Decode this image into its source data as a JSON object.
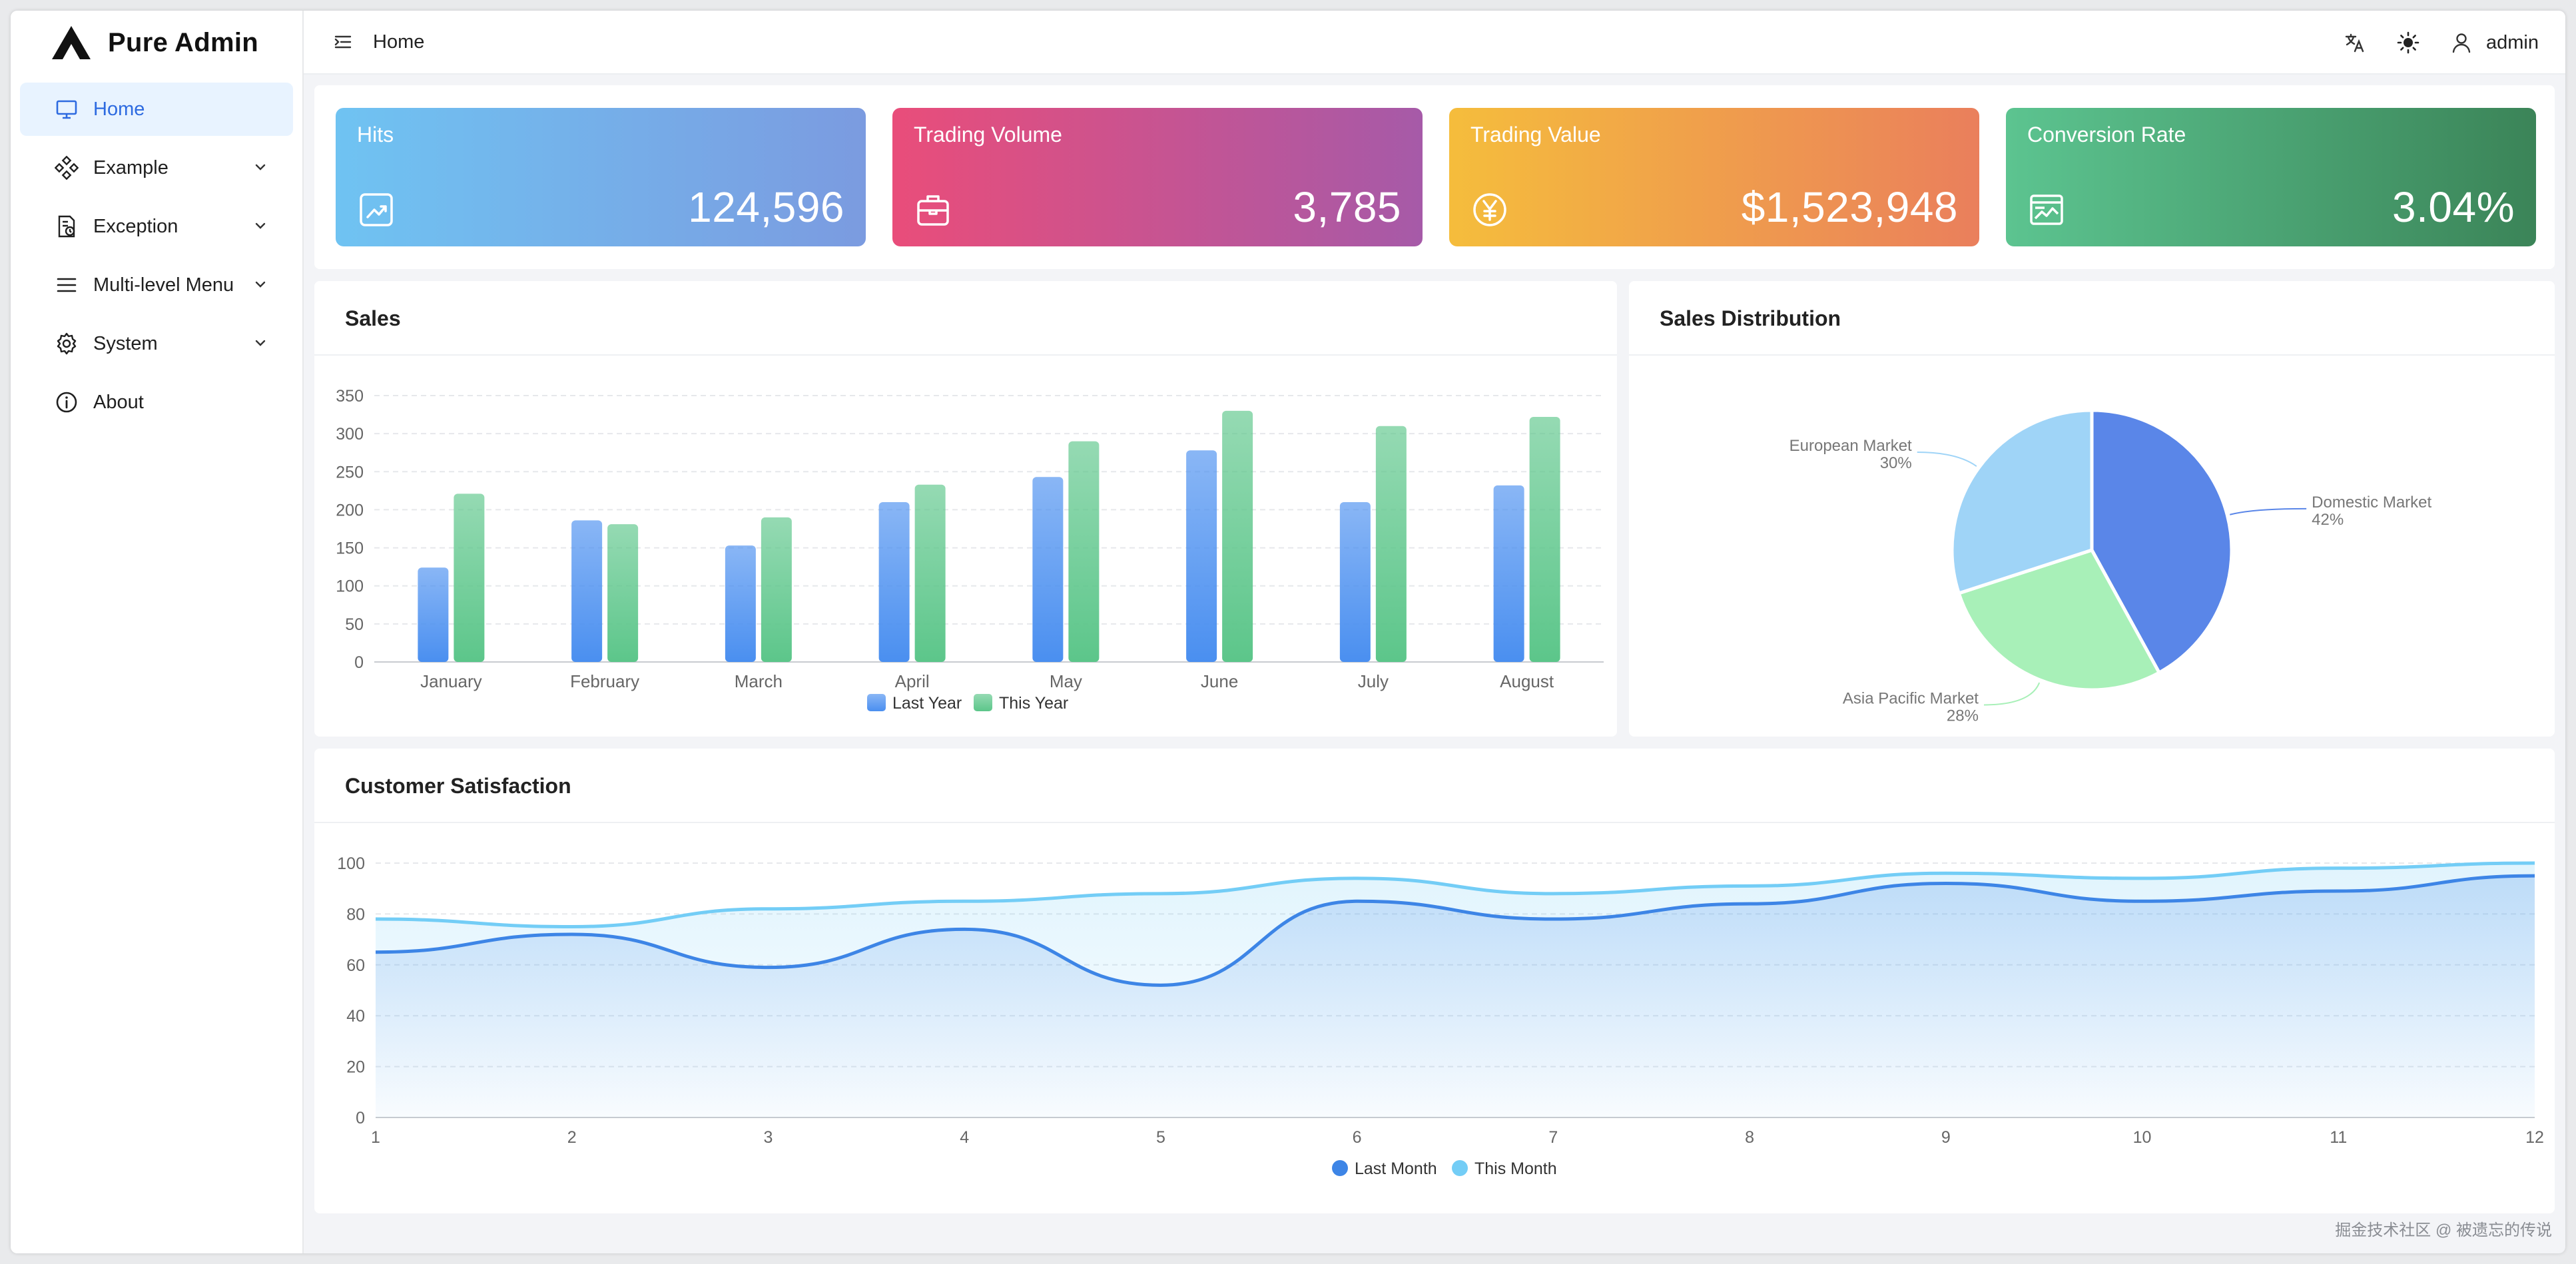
{
  "app": {
    "title": "Pure Admin"
  },
  "sidebar": {
    "items": [
      {
        "label": "Home",
        "icon": "monitor-icon",
        "active": true,
        "has_children": false
      },
      {
        "label": "Example",
        "icon": "components-icon",
        "active": false,
        "has_children": true
      },
      {
        "label": "Exception",
        "icon": "file-warning-icon",
        "active": false,
        "has_children": true
      },
      {
        "label": "Multi-level Menu",
        "icon": "menu-lines-icon",
        "active": false,
        "has_children": true
      },
      {
        "label": "System",
        "icon": "gear-icon",
        "active": false,
        "has_children": true
      },
      {
        "label": "About",
        "icon": "info-icon",
        "active": false,
        "has_children": false
      }
    ]
  },
  "header": {
    "breadcrumb": "Home",
    "user": "admin",
    "icons": [
      "translate-icon",
      "theme-sun-icon",
      "user-icon"
    ]
  },
  "stats": [
    {
      "label": "Hits",
      "value": "124,596",
      "icon": "trend-chart-icon",
      "gradient": [
        "#6fc3f2",
        "#7b9be0"
      ]
    },
    {
      "label": "Trading Volume",
      "value": "3,785",
      "icon": "briefcase-icon",
      "gradient": [
        "#e94d7a",
        "#a65aa8"
      ]
    },
    {
      "label": "Trading Value",
      "value": "$1,523,948",
      "icon": "yen-coin-icon",
      "gradient": [
        "#f5bd3c",
        "#ea7f5c"
      ]
    },
    {
      "label": "Conversion Rate",
      "value": "3.04%",
      "icon": "image-chart-icon",
      "gradient": [
        "#5cc490",
        "#3b8458"
      ]
    }
  ],
  "panels": {
    "sales": {
      "title": "Sales"
    },
    "distribution": {
      "title": "Sales Distribution"
    },
    "satisfaction": {
      "title": "Customer Satisfaction"
    }
  },
  "chart_data": [
    {
      "type": "bar",
      "title": "Sales",
      "categories": [
        "January",
        "February",
        "March",
        "April",
        "May",
        "June",
        "July",
        "August"
      ],
      "series": [
        {
          "name": "Last Year",
          "values": [
            124,
            186,
            153,
            210,
            243,
            278,
            210,
            232
          ],
          "color": "#4a8ff0"
        },
        {
          "name": "This Year",
          "values": [
            221,
            181,
            190,
            233,
            290,
            330,
            310,
            322
          ],
          "color": "#5cc68a"
        }
      ],
      "ylim": [
        0,
        350
      ],
      "yticks": [
        0,
        50,
        100,
        150,
        200,
        250,
        300,
        350
      ],
      "grid": true,
      "legend": "bottom"
    },
    {
      "type": "pie",
      "title": "Sales Distribution",
      "slices": [
        {
          "name": "Domestic Market",
          "value": 42,
          "label": "42%",
          "color": "#5a86e8"
        },
        {
          "name": "Asia Pacific Market",
          "value": 28,
          "label": "28%",
          "color": "#a8f0b8"
        },
        {
          "name": "European Market",
          "value": 30,
          "label": "30%",
          "color": "#9fd4f7"
        }
      ]
    },
    {
      "type": "area",
      "title": "Customer Satisfaction",
      "x": [
        1,
        2,
        3,
        4,
        5,
        6,
        7,
        8,
        9,
        10,
        11,
        12
      ],
      "series": [
        {
          "name": "Last Month",
          "values": [
            65,
            72,
            59,
            74,
            52,
            85,
            78,
            84,
            92,
            85,
            89,
            95
          ],
          "color": "#3d85e6"
        },
        {
          "name": "This Month",
          "values": [
            78,
            75,
            82,
            85,
            88,
            94,
            88,
            91,
            96,
            94,
            98,
            100
          ],
          "color": "#73cdf6"
        }
      ],
      "ylim": [
        0,
        100
      ],
      "yticks": [
        0,
        20,
        40,
        60,
        80,
        100
      ],
      "grid": true,
      "legend": "bottom"
    }
  ],
  "footer": {
    "watermark": "掘金技术社区 @ 被遗忘的传说"
  }
}
